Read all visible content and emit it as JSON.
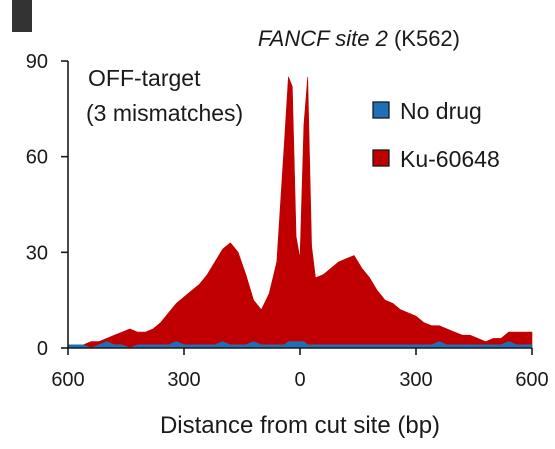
{
  "panel_tab_color": "#333333",
  "chart_data": {
    "type": "area",
    "title_italic": "FANCF site 2",
    "title_plain": " (K562)",
    "annotation": [
      "OFF-target",
      "(3 mismatches)"
    ],
    "xlabel": "Distance from cut site (bp)",
    "ylabel": "",
    "xlim": [
      -600,
      600
    ],
    "ylim": [
      0,
      90
    ],
    "xticks": [
      -600,
      -300,
      0,
      300,
      600
    ],
    "xtick_labels": [
      "600",
      "300",
      "0",
      "300",
      "600"
    ],
    "yticks": [
      0,
      30,
      60,
      90
    ],
    "ytick_labels": [
      "0",
      "30",
      "60",
      "90"
    ],
    "legend_position": "top-right",
    "x": [
      -600,
      -580,
      -560,
      -540,
      -520,
      -500,
      -480,
      -460,
      -440,
      -420,
      -400,
      -380,
      -360,
      -340,
      -320,
      -300,
      -280,
      -260,
      -240,
      -220,
      -200,
      -180,
      -160,
      -140,
      -120,
      -100,
      -80,
      -60,
      -40,
      -30,
      -20,
      -10,
      0,
      10,
      20,
      30,
      40,
      60,
      80,
      100,
      120,
      140,
      160,
      180,
      200,
      220,
      240,
      260,
      280,
      300,
      320,
      340,
      360,
      380,
      400,
      420,
      440,
      460,
      480,
      500,
      520,
      540,
      560,
      580,
      600
    ],
    "series": [
      {
        "name": "No drug",
        "color": "#1f6fb8",
        "values": [
          1,
          1,
          1,
          0,
          1,
          2,
          1,
          1,
          0,
          1,
          1,
          1,
          1,
          1,
          2,
          1,
          1,
          1,
          1,
          1,
          2,
          1,
          1,
          1,
          2,
          1,
          1,
          1,
          1,
          2,
          2,
          2,
          2,
          2,
          1,
          1,
          1,
          1,
          1,
          1,
          1,
          1,
          1,
          1,
          1,
          1,
          1,
          1,
          1,
          1,
          1,
          1,
          2,
          1,
          1,
          1,
          1,
          1,
          1,
          1,
          1,
          2,
          1,
          1,
          1
        ]
      },
      {
        "name": "Ku-60648",
        "color": "#c00000",
        "values": [
          1,
          1,
          1,
          2,
          2,
          3,
          4,
          5,
          6,
          5,
          5,
          6,
          8,
          11,
          14,
          16,
          18,
          20,
          23,
          27,
          31,
          33,
          30,
          23,
          15,
          12,
          17,
          27,
          65,
          85,
          82,
          35,
          28,
          70,
          85,
          32,
          22,
          23,
          25,
          27,
          28,
          29,
          25,
          22,
          18,
          15,
          14,
          12,
          11,
          10,
          8,
          7,
          7,
          6,
          5,
          4,
          4,
          3,
          2,
          3,
          3,
          5,
          5,
          5,
          5
        ]
      }
    ]
  }
}
